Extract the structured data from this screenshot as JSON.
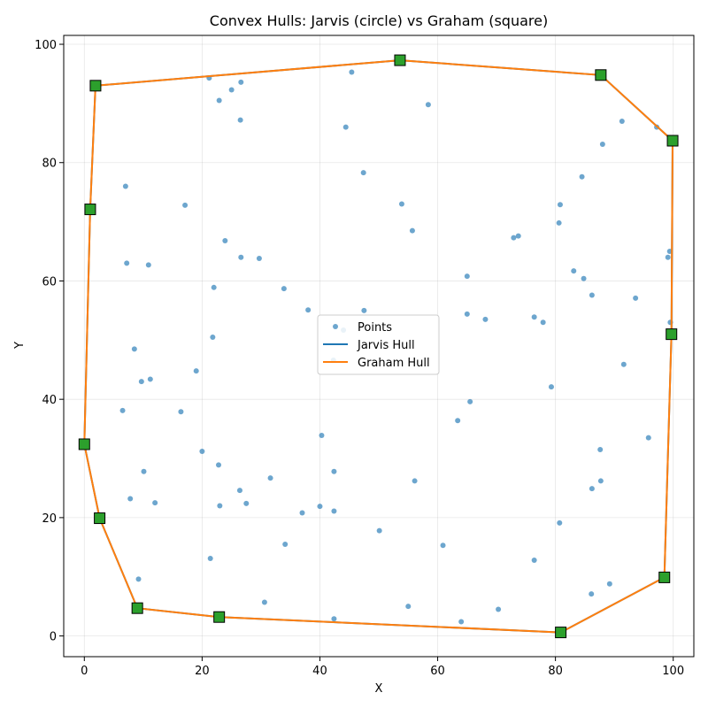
{
  "chart_data": {
    "type": "scatter",
    "title": "Convex Hulls: Jarvis (circle) vs Graham (square)",
    "xlabel": "X",
    "ylabel": "Y",
    "xlim": [
      -3.5,
      103.5
    ],
    "ylim": [
      -3.5,
      101.5
    ],
    "xticks": [
      0,
      20,
      40,
      60,
      80,
      100
    ],
    "yticks": [
      0,
      20,
      40,
      60,
      80,
      100
    ],
    "grid": true,
    "legend_position": "center",
    "colors": {
      "points": "#1f77b4",
      "jarvis": "#1f77b4",
      "graham": "#ff7f0e",
      "hull_vertex": "#2ca02c"
    },
    "legend": [
      {
        "label": "Points",
        "kind": "marker"
      },
      {
        "label": "Jarvis Hull",
        "kind": "line-jarvis"
      },
      {
        "label": "Graham Hull",
        "kind": "line-graham"
      }
    ],
    "points": [
      [
        21.2,
        94.3
      ],
      [
        25.0,
        92.3
      ],
      [
        26.6,
        93.6
      ],
      [
        22.9,
        90.5
      ],
      [
        26.5,
        87.2
      ],
      [
        45.4,
        95.3
      ],
      [
        58.4,
        89.8
      ],
      [
        44.4,
        86.0
      ],
      [
        47.4,
        78.3
      ],
      [
        7.0,
        76.0
      ],
      [
        17.1,
        72.8
      ],
      [
        53.9,
        73.0
      ],
      [
        55.7,
        68.5
      ],
      [
        80.8,
        72.9
      ],
      [
        80.6,
        69.8
      ],
      [
        84.5,
        77.6
      ],
      [
        91.3,
        87.0
      ],
      [
        88.0,
        83.1
      ],
      [
        97.2,
        86.0
      ],
      [
        99.4,
        65.0
      ],
      [
        99.1,
        64.0
      ],
      [
        93.6,
        57.1
      ],
      [
        86.2,
        57.6
      ],
      [
        84.8,
        60.4
      ],
      [
        83.1,
        61.7
      ],
      [
        73.7,
        67.6
      ],
      [
        72.9,
        67.3
      ],
      [
        65.0,
        60.8
      ],
      [
        23.9,
        66.8
      ],
      [
        26.6,
        64.0
      ],
      [
        29.7,
        63.8
      ],
      [
        7.2,
        63.0
      ],
      [
        10.9,
        62.7
      ],
      [
        22.0,
        58.9
      ],
      [
        33.9,
        58.7
      ],
      [
        38.0,
        55.1
      ],
      [
        47.5,
        55.0
      ],
      [
        65.0,
        54.4
      ],
      [
        68.1,
        53.5
      ],
      [
        76.4,
        53.9
      ],
      [
        77.9,
        53.0
      ],
      [
        99.5,
        53.0
      ],
      [
        91.6,
        45.9
      ],
      [
        79.3,
        42.1
      ],
      [
        8.5,
        48.5
      ],
      [
        21.8,
        50.5
      ],
      [
        19.0,
        44.8
      ],
      [
        9.7,
        43.0
      ],
      [
        11.2,
        43.4
      ],
      [
        6.5,
        38.1
      ],
      [
        16.4,
        37.9
      ],
      [
        65.5,
        39.6
      ],
      [
        63.4,
        36.4
      ],
      [
        40.3,
        33.9
      ],
      [
        20.0,
        31.2
      ],
      [
        87.6,
        31.5
      ],
      [
        95.8,
        33.5
      ],
      [
        10.1,
        27.8
      ],
      [
        22.8,
        28.9
      ],
      [
        31.6,
        26.7
      ],
      [
        42.4,
        27.8
      ],
      [
        56.1,
        26.2
      ],
      [
        87.7,
        26.2
      ],
      [
        86.2,
        24.9
      ],
      [
        26.4,
        24.6
      ],
      [
        7.8,
        23.2
      ],
      [
        12.0,
        22.5
      ],
      [
        23.0,
        22.0
      ],
      [
        27.5,
        22.4
      ],
      [
        37.0,
        20.8
      ],
      [
        40.0,
        21.9
      ],
      [
        42.4,
        21.1
      ],
      [
        50.1,
        17.8
      ],
      [
        34.1,
        15.5
      ],
      [
        60.9,
        15.3
      ],
      [
        80.7,
        19.1
      ],
      [
        76.4,
        12.8
      ],
      [
        21.4,
        13.1
      ],
      [
        9.2,
        9.6
      ],
      [
        89.2,
        8.8
      ],
      [
        86.1,
        7.1
      ],
      [
        30.6,
        5.7
      ],
      [
        55.0,
        5.0
      ],
      [
        70.3,
        4.5
      ],
      [
        42.4,
        2.9
      ],
      [
        64.0,
        2.4
      ],
      [
        44.0,
        51.7
      ],
      [
        42.3,
        46.6
      ]
    ],
    "hull": [
      [
        53.6,
        97.3
      ],
      [
        87.7,
        94.8
      ],
      [
        99.9,
        83.7
      ],
      [
        99.7,
        51.0
      ],
      [
        98.5,
        9.9
      ],
      [
        80.9,
        0.6
      ],
      [
        22.9,
        3.2
      ],
      [
        9.0,
        4.7
      ],
      [
        2.6,
        19.9
      ],
      [
        0.0,
        32.4
      ],
      [
        1.0,
        72.1
      ],
      [
        1.9,
        93.0
      ],
      [
        53.6,
        97.3
      ]
    ]
  }
}
